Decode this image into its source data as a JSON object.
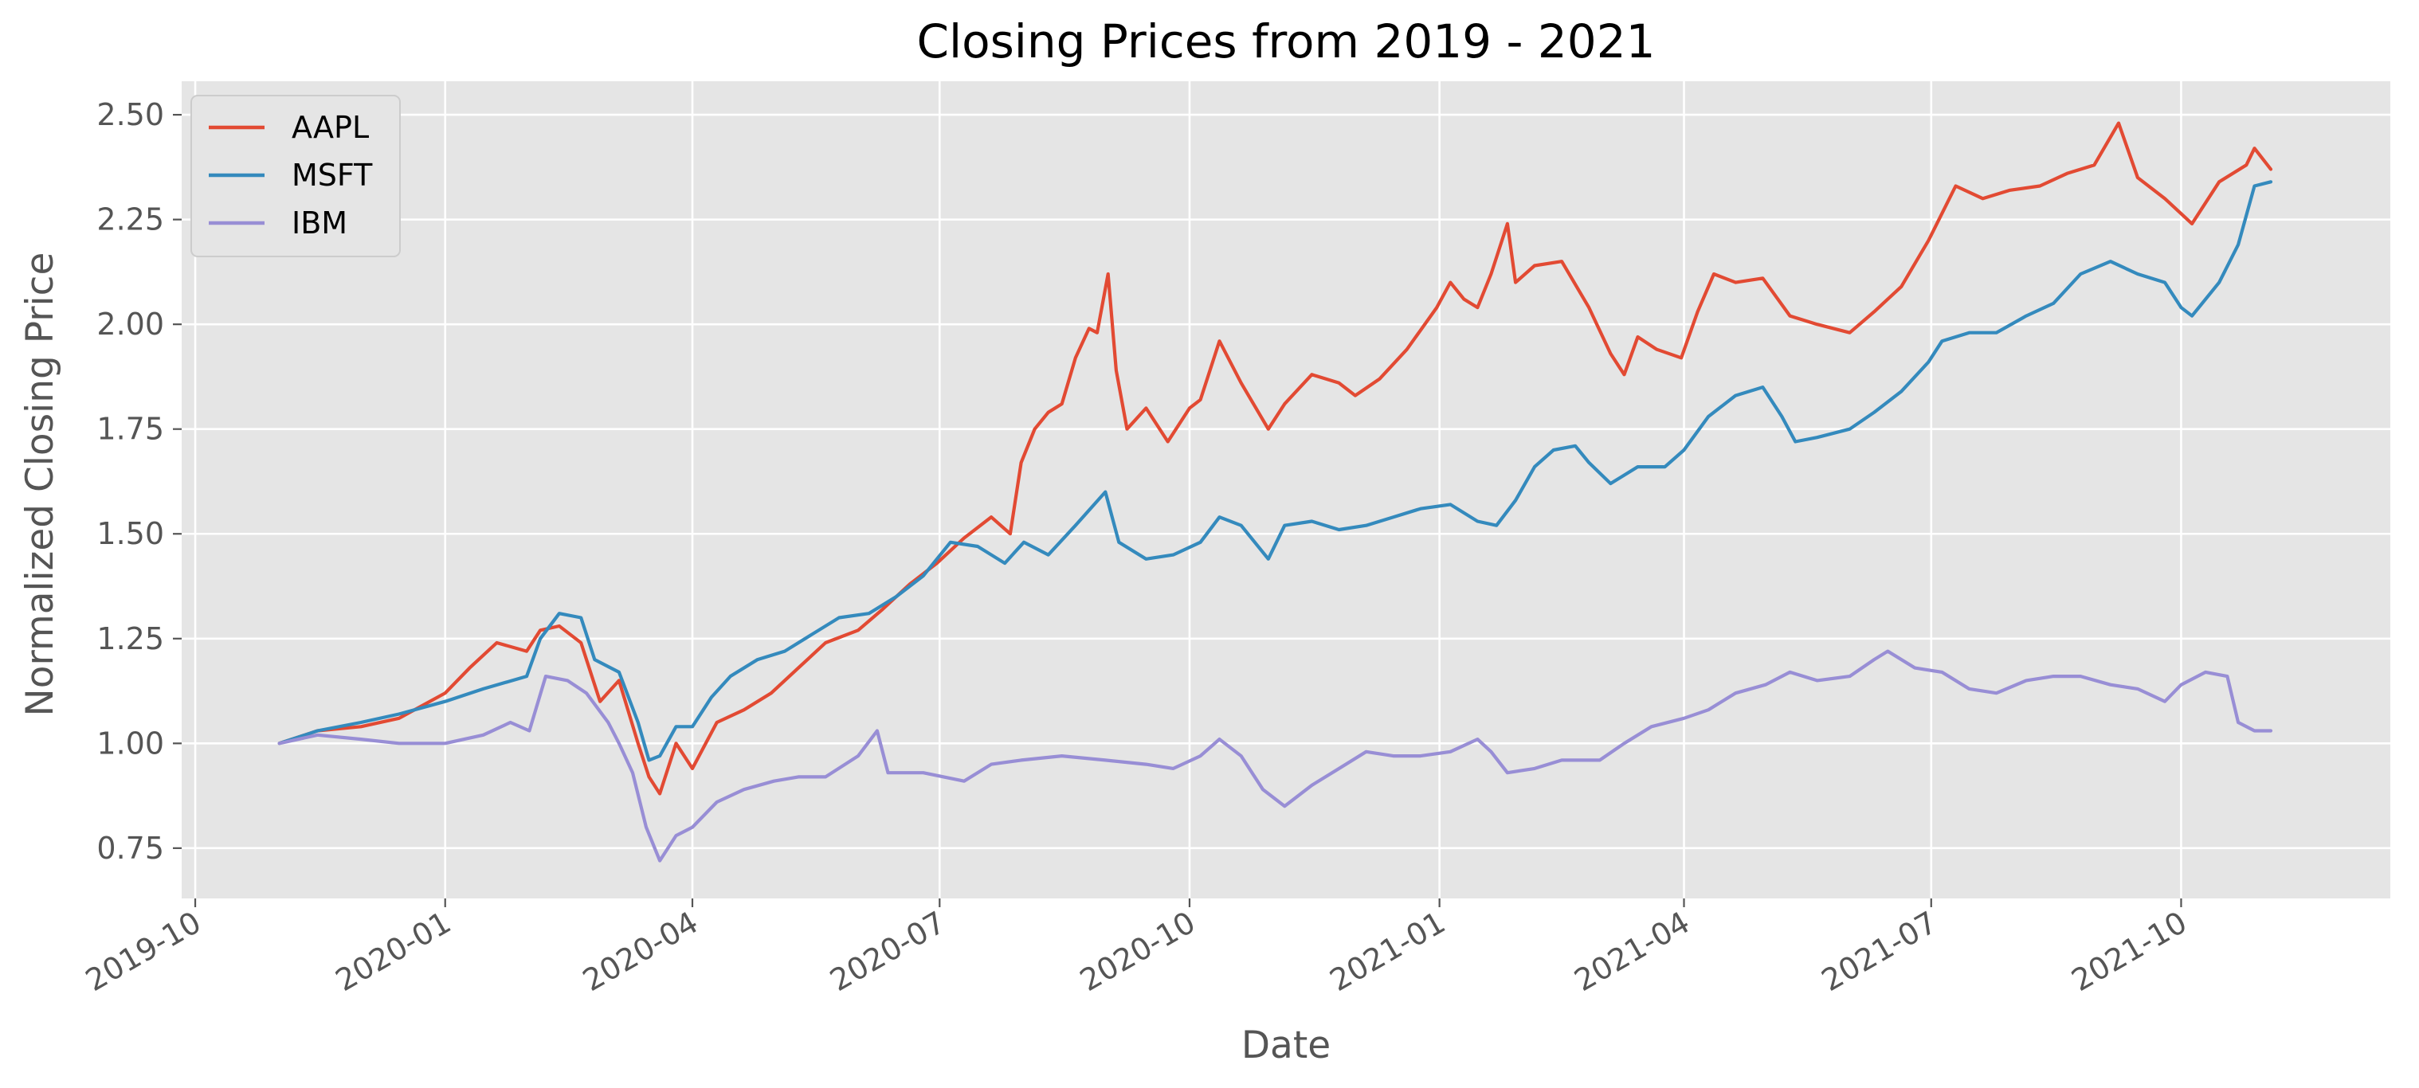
{
  "chart_data": {
    "type": "line",
    "title": "Closing Prices from 2019 - 2021",
    "xlabel": "Date",
    "ylabel": "Normalized Closing Price",
    "x_range": [
      "2019-09-26",
      "2021-12-17"
    ],
    "ylim": [
      0.63,
      2.58
    ],
    "grid": true,
    "legend_position": "top-left",
    "background": "#E5E5E5",
    "x_ticks": [
      "2019-10",
      "2020-01",
      "2020-04",
      "2020-07",
      "2020-10",
      "2021-01",
      "2021-04",
      "2021-07",
      "2021-10"
    ],
    "x_tick_dates": [
      "2019-10-01",
      "2020-01-01",
      "2020-04-01",
      "2020-07-01",
      "2020-10-01",
      "2021-01-01",
      "2021-04-01",
      "2021-07-01",
      "2021-10-01"
    ],
    "y_ticks": [
      "0.75",
      "1.00",
      "1.25",
      "1.50",
      "1.75",
      "2.00",
      "2.25",
      "2.50"
    ],
    "series": [
      {
        "name": "AAPL",
        "color": "#E24A33",
        "points": [
          [
            "2019-11-01",
            1.0
          ],
          [
            "2019-11-15",
            1.03
          ],
          [
            "2019-12-01",
            1.04
          ],
          [
            "2019-12-15",
            1.06
          ],
          [
            "2020-01-01",
            1.12
          ],
          [
            "2020-01-10",
            1.18
          ],
          [
            "2020-01-20",
            1.24
          ],
          [
            "2020-01-31",
            1.22
          ],
          [
            "2020-02-05",
            1.27
          ],
          [
            "2020-02-12",
            1.28
          ],
          [
            "2020-02-20",
            1.24
          ],
          [
            "2020-02-27",
            1.1
          ],
          [
            "2020-03-05",
            1.15
          ],
          [
            "2020-03-12",
            1.0
          ],
          [
            "2020-03-16",
            0.92
          ],
          [
            "2020-03-20",
            0.88
          ],
          [
            "2020-03-26",
            1.0
          ],
          [
            "2020-04-01",
            0.94
          ],
          [
            "2020-04-10",
            1.05
          ],
          [
            "2020-04-20",
            1.08
          ],
          [
            "2020-04-30",
            1.12
          ],
          [
            "2020-05-10",
            1.18
          ],
          [
            "2020-05-20",
            1.24
          ],
          [
            "2020-06-01",
            1.27
          ],
          [
            "2020-06-10",
            1.32
          ],
          [
            "2020-06-20",
            1.38
          ],
          [
            "2020-06-30",
            1.43
          ],
          [
            "2020-07-10",
            1.49
          ],
          [
            "2020-07-20",
            1.54
          ],
          [
            "2020-07-27",
            1.5
          ],
          [
            "2020-07-31",
            1.67
          ],
          [
            "2020-08-05",
            1.75
          ],
          [
            "2020-08-10",
            1.79
          ],
          [
            "2020-08-15",
            1.81
          ],
          [
            "2020-08-20",
            1.92
          ],
          [
            "2020-08-25",
            1.99
          ],
          [
            "2020-08-28",
            1.98
          ],
          [
            "2020-09-01",
            2.12
          ],
          [
            "2020-09-04",
            1.89
          ],
          [
            "2020-09-08",
            1.75
          ],
          [
            "2020-09-15",
            1.8
          ],
          [
            "2020-09-23",
            1.72
          ],
          [
            "2020-10-01",
            1.8
          ],
          [
            "2020-10-05",
            1.82
          ],
          [
            "2020-10-12",
            1.96
          ],
          [
            "2020-10-20",
            1.86
          ],
          [
            "2020-10-30",
            1.75
          ],
          [
            "2020-11-05",
            1.81
          ],
          [
            "2020-11-15",
            1.88
          ],
          [
            "2020-11-25",
            1.86
          ],
          [
            "2020-12-01",
            1.83
          ],
          [
            "2020-12-10",
            1.87
          ],
          [
            "2020-12-20",
            1.94
          ],
          [
            "2020-12-31",
            2.04
          ],
          [
            "2021-01-05",
            2.1
          ],
          [
            "2021-01-10",
            2.06
          ],
          [
            "2021-01-15",
            2.04
          ],
          [
            "2021-01-20",
            2.12
          ],
          [
            "2021-01-26",
            2.24
          ],
          [
            "2021-01-29",
            2.1
          ],
          [
            "2021-02-05",
            2.14
          ],
          [
            "2021-02-15",
            2.15
          ],
          [
            "2021-02-25",
            2.04
          ],
          [
            "2021-03-05",
            1.93
          ],
          [
            "2021-03-10",
            1.88
          ],
          [
            "2021-03-15",
            1.97
          ],
          [
            "2021-03-22",
            1.94
          ],
          [
            "2021-03-31",
            1.92
          ],
          [
            "2021-04-06",
            2.03
          ],
          [
            "2021-04-12",
            2.12
          ],
          [
            "2021-04-20",
            2.1
          ],
          [
            "2021-04-30",
            2.11
          ],
          [
            "2021-05-10",
            2.02
          ],
          [
            "2021-05-20",
            2.0
          ],
          [
            "2021-06-01",
            1.98
          ],
          [
            "2021-06-10",
            2.03
          ],
          [
            "2021-06-20",
            2.09
          ],
          [
            "2021-06-30",
            2.2
          ],
          [
            "2021-07-10",
            2.33
          ],
          [
            "2021-07-20",
            2.3
          ],
          [
            "2021-07-30",
            2.32
          ],
          [
            "2021-08-10",
            2.33
          ],
          [
            "2021-08-20",
            2.36
          ],
          [
            "2021-08-30",
            2.38
          ],
          [
            "2021-09-08",
            2.48
          ],
          [
            "2021-09-15",
            2.35
          ],
          [
            "2021-09-25",
            2.3
          ],
          [
            "2021-10-05",
            2.24
          ],
          [
            "2021-10-15",
            2.34
          ],
          [
            "2021-10-25",
            2.38
          ],
          [
            "2021-10-28",
            2.42
          ],
          [
            "2021-11-03",
            2.37
          ]
        ]
      },
      {
        "name": "MSFT",
        "color": "#348ABD",
        "points": [
          [
            "2019-11-01",
            1.0
          ],
          [
            "2019-11-15",
            1.03
          ],
          [
            "2019-12-01",
            1.05
          ],
          [
            "2019-12-15",
            1.07
          ],
          [
            "2020-01-01",
            1.1
          ],
          [
            "2020-01-15",
            1.13
          ],
          [
            "2020-01-31",
            1.16
          ],
          [
            "2020-02-05",
            1.25
          ],
          [
            "2020-02-12",
            1.31
          ],
          [
            "2020-02-20",
            1.3
          ],
          [
            "2020-02-25",
            1.2
          ],
          [
            "2020-03-05",
            1.17
          ],
          [
            "2020-03-12",
            1.05
          ],
          [
            "2020-03-16",
            0.96
          ],
          [
            "2020-03-20",
            0.97
          ],
          [
            "2020-03-26",
            1.04
          ],
          [
            "2020-04-01",
            1.04
          ],
          [
            "2020-04-08",
            1.11
          ],
          [
            "2020-04-15",
            1.16
          ],
          [
            "2020-04-25",
            1.2
          ],
          [
            "2020-05-05",
            1.22
          ],
          [
            "2020-05-15",
            1.26
          ],
          [
            "2020-05-25",
            1.3
          ],
          [
            "2020-06-05",
            1.31
          ],
          [
            "2020-06-15",
            1.35
          ],
          [
            "2020-06-25",
            1.4
          ],
          [
            "2020-07-05",
            1.48
          ],
          [
            "2020-07-15",
            1.47
          ],
          [
            "2020-07-25",
            1.43
          ],
          [
            "2020-08-01",
            1.48
          ],
          [
            "2020-08-10",
            1.45
          ],
          [
            "2020-08-20",
            1.52
          ],
          [
            "2020-08-31",
            1.6
          ],
          [
            "2020-09-05",
            1.48
          ],
          [
            "2020-09-15",
            1.44
          ],
          [
            "2020-09-25",
            1.45
          ],
          [
            "2020-10-05",
            1.48
          ],
          [
            "2020-10-12",
            1.54
          ],
          [
            "2020-10-20",
            1.52
          ],
          [
            "2020-10-30",
            1.44
          ],
          [
            "2020-11-05",
            1.52
          ],
          [
            "2020-11-15",
            1.53
          ],
          [
            "2020-11-25",
            1.51
          ],
          [
            "2020-12-05",
            1.52
          ],
          [
            "2020-12-15",
            1.54
          ],
          [
            "2020-12-25",
            1.56
          ],
          [
            "2021-01-05",
            1.57
          ],
          [
            "2021-01-15",
            1.53
          ],
          [
            "2021-01-22",
            1.52
          ],
          [
            "2021-01-29",
            1.58
          ],
          [
            "2021-02-05",
            1.66
          ],
          [
            "2021-02-12",
            1.7
          ],
          [
            "2021-02-20",
            1.71
          ],
          [
            "2021-02-25",
            1.67
          ],
          [
            "2021-03-05",
            1.62
          ],
          [
            "2021-03-15",
            1.66
          ],
          [
            "2021-03-25",
            1.66
          ],
          [
            "2021-04-01",
            1.7
          ],
          [
            "2021-04-10",
            1.78
          ],
          [
            "2021-04-20",
            1.83
          ],
          [
            "2021-04-30",
            1.85
          ],
          [
            "2021-05-07",
            1.78
          ],
          [
            "2021-05-12",
            1.72
          ],
          [
            "2021-05-20",
            1.73
          ],
          [
            "2021-06-01",
            1.75
          ],
          [
            "2021-06-10",
            1.79
          ],
          [
            "2021-06-20",
            1.84
          ],
          [
            "2021-06-30",
            1.91
          ],
          [
            "2021-07-05",
            1.96
          ],
          [
            "2021-07-15",
            1.98
          ],
          [
            "2021-07-25",
            1.98
          ],
          [
            "2021-08-05",
            2.02
          ],
          [
            "2021-08-15",
            2.05
          ],
          [
            "2021-08-25",
            2.12
          ],
          [
            "2021-09-05",
            2.15
          ],
          [
            "2021-09-15",
            2.12
          ],
          [
            "2021-09-25",
            2.1
          ],
          [
            "2021-10-01",
            2.04
          ],
          [
            "2021-10-05",
            2.02
          ],
          [
            "2021-10-15",
            2.1
          ],
          [
            "2021-10-22",
            2.19
          ],
          [
            "2021-10-28",
            2.33
          ],
          [
            "2021-11-03",
            2.34
          ]
        ]
      },
      {
        "name": "IBM",
        "color": "#988ED5",
        "points": [
          [
            "2019-11-01",
            1.0
          ],
          [
            "2019-11-15",
            1.02
          ],
          [
            "2019-12-01",
            1.01
          ],
          [
            "2019-12-15",
            1.0
          ],
          [
            "2020-01-01",
            1.0
          ],
          [
            "2020-01-15",
            1.02
          ],
          [
            "2020-01-25",
            1.05
          ],
          [
            "2020-02-01",
            1.03
          ],
          [
            "2020-02-07",
            1.16
          ],
          [
            "2020-02-15",
            1.15
          ],
          [
            "2020-02-22",
            1.12
          ],
          [
            "2020-03-01",
            1.05
          ],
          [
            "2020-03-05",
            1.0
          ],
          [
            "2020-03-10",
            0.93
          ],
          [
            "2020-03-15",
            0.8
          ],
          [
            "2020-03-20",
            0.72
          ],
          [
            "2020-03-26",
            0.78
          ],
          [
            "2020-04-01",
            0.8
          ],
          [
            "2020-04-10",
            0.86
          ],
          [
            "2020-04-20",
            0.89
          ],
          [
            "2020-05-01",
            0.91
          ],
          [
            "2020-05-10",
            0.92
          ],
          [
            "2020-05-20",
            0.92
          ],
          [
            "2020-06-01",
            0.97
          ],
          [
            "2020-06-08",
            1.03
          ],
          [
            "2020-06-12",
            0.93
          ],
          [
            "2020-06-25",
            0.93
          ],
          [
            "2020-07-10",
            0.91
          ],
          [
            "2020-07-20",
            0.95
          ],
          [
            "2020-07-31",
            0.96
          ],
          [
            "2020-08-15",
            0.97
          ],
          [
            "2020-08-31",
            0.96
          ],
          [
            "2020-09-15",
            0.95
          ],
          [
            "2020-09-25",
            0.94
          ],
          [
            "2020-10-05",
            0.97
          ],
          [
            "2020-10-12",
            1.01
          ],
          [
            "2020-10-20",
            0.97
          ],
          [
            "2020-10-28",
            0.89
          ],
          [
            "2020-11-05",
            0.85
          ],
          [
            "2020-11-15",
            0.9
          ],
          [
            "2020-11-25",
            0.94
          ],
          [
            "2020-12-05",
            0.98
          ],
          [
            "2020-12-15",
            0.97
          ],
          [
            "2020-12-25",
            0.97
          ],
          [
            "2021-01-05",
            0.98
          ],
          [
            "2021-01-15",
            1.01
          ],
          [
            "2021-01-20",
            0.98
          ],
          [
            "2021-01-26",
            0.93
          ],
          [
            "2021-02-05",
            0.94
          ],
          [
            "2021-02-15",
            0.96
          ],
          [
            "2021-03-01",
            0.96
          ],
          [
            "2021-03-10",
            1.0
          ],
          [
            "2021-03-20",
            1.04
          ],
          [
            "2021-04-01",
            1.06
          ],
          [
            "2021-04-10",
            1.08
          ],
          [
            "2021-04-20",
            1.12
          ],
          [
            "2021-05-01",
            1.14
          ],
          [
            "2021-05-10",
            1.17
          ],
          [
            "2021-05-20",
            1.15
          ],
          [
            "2021-06-01",
            1.16
          ],
          [
            "2021-06-10",
            1.2
          ],
          [
            "2021-06-15",
            1.22
          ],
          [
            "2021-06-25",
            1.18
          ],
          [
            "2021-07-05",
            1.17
          ],
          [
            "2021-07-15",
            1.13
          ],
          [
            "2021-07-25",
            1.12
          ],
          [
            "2021-08-05",
            1.15
          ],
          [
            "2021-08-15",
            1.16
          ],
          [
            "2021-08-25",
            1.16
          ],
          [
            "2021-09-05",
            1.14
          ],
          [
            "2021-09-15",
            1.13
          ],
          [
            "2021-09-25",
            1.1
          ],
          [
            "2021-10-01",
            1.14
          ],
          [
            "2021-10-10",
            1.17
          ],
          [
            "2021-10-18",
            1.16
          ],
          [
            "2021-10-22",
            1.05
          ],
          [
            "2021-10-28",
            1.03
          ],
          [
            "2021-11-03",
            1.03
          ]
        ]
      }
    ]
  }
}
